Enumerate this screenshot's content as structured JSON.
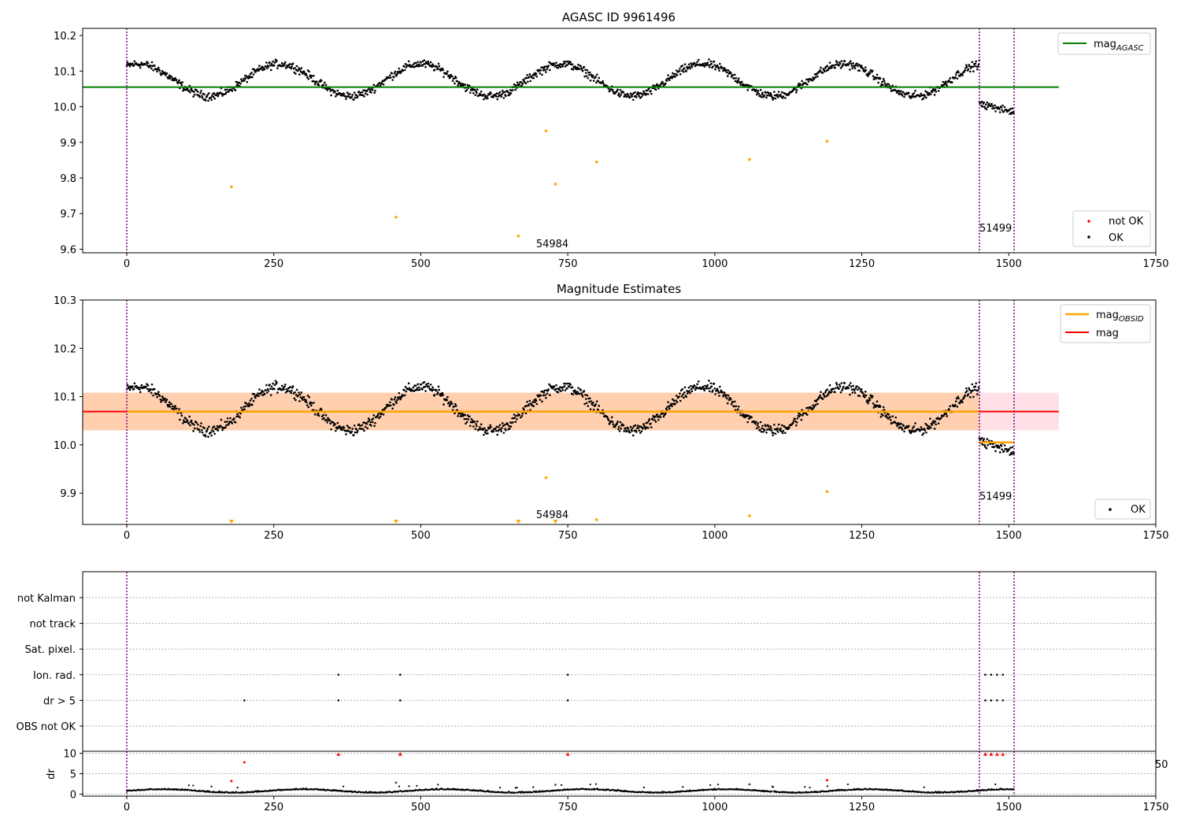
{
  "colors": {
    "ok_points": "#000000",
    "not_ok_points": "#ff0000",
    "suspect_points": "#ffa500",
    "mag_agasc_line": "#008000",
    "mag_line": "#ff0000",
    "mag_obsid_line": "#ffa500",
    "band_fill": "#ffcfb0",
    "band_extra_fill": "#ffe0e6",
    "obsid_boundary": "#800080",
    "grid": "#b0b0b0"
  },
  "chart_data": [
    {
      "type": "scatter",
      "title": "AGASC ID 9961496",
      "xlim": [
        -75,
        1750
      ],
      "ylim": [
        9.59,
        10.22
      ],
      "xticks": [
        0,
        250,
        500,
        750,
        1000,
        1250,
        1500,
        1750
      ],
      "yticks": [
        9.6,
        9.7,
        9.8,
        9.9,
        10.0,
        10.1,
        10.2
      ],
      "ytick_labels": [
        "9.6",
        "9.7",
        "9.8",
        "9.9",
        "10.0",
        "10.1",
        "10.2"
      ],
      "obsid_boundaries": [
        0,
        1450,
        1509
      ],
      "obsid_labels": [
        {
          "text": "54984",
          "x": 696,
          "y": 9.605
        },
        {
          "text": "51499",
          "x": 1450,
          "y": 9.65
        }
      ],
      "mag_agasc": {
        "value": 10.055,
        "x_range": [
          -75,
          1585
        ]
      },
      "legend_upper": [
        {
          "name": "mag",
          "sub": "AGASC"
        }
      ],
      "legend_lower": [
        {
          "name": "not OK"
        },
        {
          "name": "OK"
        }
      ],
      "ok_series": {
        "x_range": [
          0,
          1509
        ],
        "segments": [
          {
            "x0": 0,
            "x1": 1450,
            "base": 10.075,
            "amp": 0.045,
            "period": 240,
            "phase": 1.05
          },
          {
            "x0": 1450,
            "x1": 1509,
            "base": 10.008,
            "amp": 0.012,
            "period": 60,
            "phase": 0
          }
        ],
        "noise": 0.02
      },
      "suspect_points": [
        {
          "x": 178,
          "y": 9.775
        },
        {
          "x": 458,
          "y": 9.69
        },
        {
          "x": 666,
          "y": 9.637
        },
        {
          "x": 713,
          "y": 9.932
        },
        {
          "x": 729,
          "y": 9.783
        },
        {
          "x": 799,
          "y": 9.845
        },
        {
          "x": 1059,
          "y": 9.852
        },
        {
          "x": 1191,
          "y": 9.903
        }
      ]
    },
    {
      "type": "scatter",
      "title": "Magnitude Estimates",
      "xlim": [
        -75,
        1750
      ],
      "ylim": [
        9.835,
        10.3
      ],
      "xticks": [
        0,
        250,
        500,
        750,
        1000,
        1250,
        1500,
        1750
      ],
      "yticks": [
        9.9,
        10.0,
        10.1,
        10.2,
        10.3
      ],
      "ytick_labels": [
        "9.9",
        "10.0",
        "10.1",
        "10.2",
        "10.3"
      ],
      "obsid_boundaries": [
        0,
        1450,
        1509
      ],
      "obsid_labels": [
        {
          "text": "54984",
          "x": 696,
          "y": 9.848
        },
        {
          "text": "51499",
          "x": 1450,
          "y": 9.886
        }
      ],
      "mag": {
        "value": 10.069,
        "x_range": [
          -75,
          1585
        ]
      },
      "band": {
        "low": 10.03,
        "high": 10.108,
        "x_range": [
          -75,
          1585
        ],
        "split_x": 1450
      },
      "mag_obsid": [
        {
          "x0": 0,
          "x1": 1450,
          "value": 10.069
        },
        {
          "x0": 1450,
          "x1": 1509,
          "value": 10.005
        }
      ],
      "legend_upper": [
        {
          "name": "mag",
          "sub": "OBSID"
        },
        {
          "name": "mag"
        }
      ],
      "legend_lower": [
        {
          "name": "OK"
        }
      ],
      "suspect_points": [
        {
          "x": 713,
          "y": 9.932
        },
        {
          "x": 799,
          "y": 9.845
        },
        {
          "x": 1059,
          "y": 9.853
        },
        {
          "x": 1191,
          "y": 9.903
        }
      ],
      "below_range_markers": [
        178,
        458,
        666,
        729
      ]
    },
    {
      "type": "scatter",
      "title": "",
      "xlim": [
        -75,
        1750
      ],
      "categories": [
        "not Kalman",
        "not track",
        "Sat. pixel.",
        "Ion. rad.",
        "dr > 5",
        "OBS not OK"
      ],
      "obsid_boundaries": [
        0,
        1450,
        1509
      ],
      "flags": {
        "Ion. rad.": [
          360,
          465,
          750,
          1460,
          1470,
          1480,
          1490
        ],
        "dr > 5": [
          200,
          360,
          465,
          750,
          1460,
          1470,
          1480,
          1490
        ]
      }
    },
    {
      "type": "scatter",
      "title": "",
      "ylabel": "dr",
      "xlim": [
        -75,
        1750
      ],
      "ylim": [
        -0.5,
        10.5
      ],
      "xticks": [
        0,
        250,
        500,
        750,
        1000,
        1250,
        1500,
        1750
      ],
      "yticks": [
        0,
        5,
        10
      ],
      "ytick_labels": [
        "0",
        "5",
        "10"
      ],
      "right_label": "50",
      "obsid_boundaries": [
        0,
        1450,
        1509
      ],
      "clipped_markers": [
        360,
        465,
        750,
        1460,
        1470,
        1480,
        1490
      ],
      "not_ok_points": [
        {
          "x": 200,
          "y": 7.8
        },
        {
          "x": 178,
          "y": 3.2
        },
        {
          "x": 1191,
          "y": 3.4
        }
      ],
      "suspect_points": [
        {
          "x": 458,
          "y": 2.8
        },
        {
          "x": 729,
          "y": 2.3
        },
        {
          "x": 1059,
          "y": 2.4
        }
      ],
      "ok_series": {
        "x_range": [
          0,
          1509
        ],
        "base": 0.7,
        "amp": 0.4,
        "period": 240,
        "noise": 0.35
      }
    }
  ]
}
